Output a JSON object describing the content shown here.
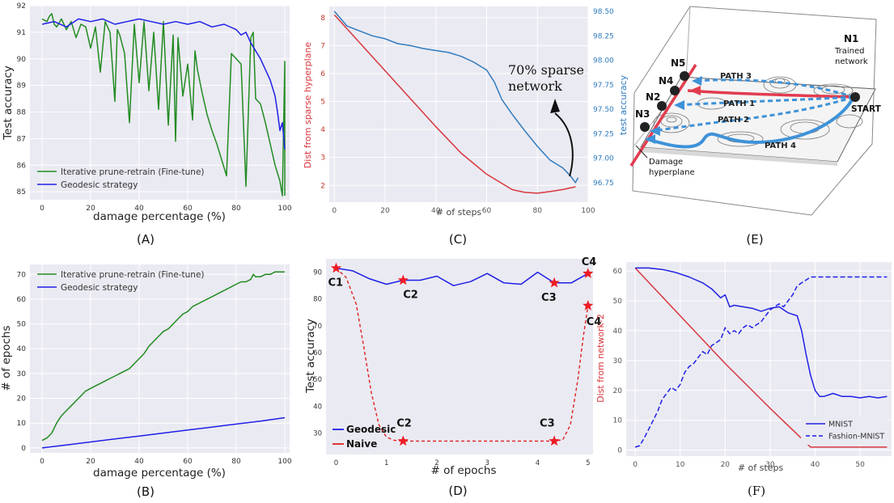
{
  "panel_labels": {
    "A": "(A)",
    "B": "(B)",
    "C": "(C)",
    "D": "(D)",
    "E": "(E)",
    "F": "(F)"
  },
  "chart_data": [
    {
      "id": "A",
      "type": "line",
      "xlabel": "damage percentage (%)",
      "ylabel": "Test accuracy",
      "xlim": [
        -5,
        102
      ],
      "ylim": [
        84.7,
        92
      ],
      "xticks": [
        0,
        20,
        40,
        60,
        80,
        100
      ],
      "yticks": [
        85,
        86,
        87,
        88,
        89,
        90,
        91,
        92
      ],
      "legend": [
        {
          "name": "Iterative prune-retrain (Fine-tune)",
          "color": "#228b22"
        },
        {
          "name": "Geodesic strategy",
          "color": "#1f1fe6"
        }
      ],
      "series": [
        {
          "name": "Iterative prune-retrain (Fine-tune)",
          "color": "#228b22",
          "x": [
            0,
            2,
            3,
            4,
            5,
            6,
            8,
            10,
            12,
            14,
            16,
            18,
            20,
            22,
            24,
            26,
            28,
            30,
            31,
            32,
            34,
            36,
            38,
            40,
            42,
            44,
            46,
            48,
            50,
            52,
            54,
            55,
            56,
            58,
            60,
            62,
            63,
            64,
            66,
            68,
            70,
            72,
            74,
            76,
            78,
            80,
            82,
            84,
            86,
            87,
            88,
            90,
            92,
            94,
            96,
            98,
            99,
            100,
            100
          ],
          "y": [
            91.5,
            91.4,
            91.6,
            91.7,
            91.3,
            91.2,
            91.5,
            91.1,
            91.4,
            90.8,
            91.3,
            91.2,
            90.4,
            91.2,
            89.5,
            91.4,
            91.0,
            88.4,
            91.1,
            90.9,
            90.2,
            87.6,
            91.3,
            89.1,
            91.4,
            88.8,
            91.0,
            88.1,
            91.4,
            87.5,
            90.9,
            86.9,
            90.8,
            88.6,
            89.8,
            87.7,
            90.3,
            89.6,
            88.7,
            87.9,
            87.3,
            86.8,
            86.2,
            85.6,
            90.2,
            90.0,
            89.8,
            85.2,
            90.8,
            91.0,
            88.5,
            88.3,
            87.6,
            86.8,
            86.0,
            85.4,
            84.85,
            89.9,
            84.85
          ]
        },
        {
          "name": "Geodesic strategy",
          "color": "#1f1fe6",
          "x": [
            0,
            5,
            10,
            15,
            20,
            25,
            30,
            35,
            40,
            45,
            50,
            55,
            60,
            65,
            70,
            75,
            80,
            82,
            84,
            86,
            88,
            90,
            92,
            94,
            96,
            97,
            98,
            99,
            100
          ],
          "y": [
            91.3,
            91.4,
            91.2,
            91.5,
            91.4,
            91.5,
            91.3,
            91.4,
            91.5,
            91.4,
            91.3,
            91.4,
            91.3,
            91.4,
            91.2,
            91.3,
            91.1,
            90.9,
            91.0,
            90.6,
            90.3,
            90.0,
            89.6,
            89.2,
            88.6,
            88.0,
            87.3,
            87.6,
            86.6
          ]
        }
      ]
    },
    {
      "id": "B",
      "type": "line",
      "xlabel": "damage percentage (%)",
      "ylabel": "# of epochs",
      "xlim": [
        -5,
        102
      ],
      "ylim": [
        -2,
        74
      ],
      "xticks": [
        0,
        20,
        40,
        60,
        80,
        100
      ],
      "yticks": [
        0,
        10,
        20,
        30,
        40,
        50,
        60,
        70
      ],
      "legend": [
        {
          "name": "Iterative prune-retrain (Fine-tune)",
          "color": "#228b22"
        },
        {
          "name": "Geodesic strategy",
          "color": "#1f1fe6"
        }
      ],
      "series": [
        {
          "name": "Iterative prune-retrain (Fine-tune)",
          "color": "#228b22",
          "x": [
            0,
            2,
            4,
            6,
            8,
            10,
            12,
            14,
            16,
            18,
            20,
            22,
            24,
            26,
            28,
            30,
            32,
            34,
            36,
            38,
            40,
            42,
            44,
            46,
            48,
            50,
            52,
            54,
            56,
            58,
            60,
            62,
            64,
            66,
            68,
            70,
            72,
            74,
            76,
            78,
            80,
            82,
            84,
            86,
            87,
            88,
            90,
            92,
            94,
            96,
            98,
            100
          ],
          "y": [
            3,
            4,
            6,
            10,
            13,
            15,
            17,
            19,
            21,
            23,
            24,
            25,
            26,
            27,
            28,
            29,
            30,
            31,
            32,
            34,
            36,
            38,
            41,
            43,
            45,
            47,
            48,
            50,
            52,
            54,
            55,
            57,
            58,
            59,
            60,
            61,
            62,
            63,
            64,
            65,
            66,
            67,
            67,
            68,
            70,
            69,
            69,
            70,
            70,
            71,
            71,
            71
          ]
        },
        {
          "name": "Geodesic strategy",
          "color": "#1f1fe6",
          "x": [
            0,
            10,
            20,
            30,
            40,
            50,
            60,
            70,
            80,
            90,
            100
          ],
          "y": [
            0,
            1.2,
            2.4,
            3.6,
            4.8,
            6.0,
            7.2,
            8.4,
            9.6,
            10.8,
            12.2
          ]
        }
      ]
    },
    {
      "id": "C",
      "type": "line",
      "xlabel": "# of steps",
      "ylabel": "Dist from sparse hyperplane",
      "ylabel_right": "test accuracy",
      "xlim": [
        -2,
        100
      ],
      "ylim": [
        1.4,
        8.4
      ],
      "ylim_right": [
        96.55,
        98.55
      ],
      "xticks": [
        0,
        20,
        40,
        60,
        80,
        100
      ],
      "yticks": [
        2,
        3,
        4,
        5,
        6,
        7,
        8
      ],
      "yticks_right": [
        96.75,
        97.0,
        97.25,
        97.5,
        97.75,
        98.0,
        98.25,
        98.5
      ],
      "annotation": [
        "70% sparse",
        "network"
      ],
      "series": [
        {
          "name": "Dist from sparse hyperplane",
          "color": "#d9363e",
          "axis": "left",
          "x": [
            0,
            10,
            20,
            30,
            40,
            50,
            60,
            70,
            75,
            80,
            85,
            90,
            95
          ],
          "y": [
            8.1,
            7.1,
            6.1,
            5.1,
            4.1,
            3.15,
            2.4,
            1.85,
            1.75,
            1.72,
            1.78,
            1.85,
            1.95
          ]
        },
        {
          "name": "test accuracy",
          "color": "#2f7bbd",
          "axis": "right",
          "x": [
            0,
            5,
            10,
            15,
            20,
            25,
            30,
            35,
            40,
            45,
            50,
            55,
            60,
            63,
            66,
            70,
            75,
            80,
            85,
            90,
            93,
            95,
            96
          ],
          "y": [
            98.5,
            98.35,
            98.3,
            98.25,
            98.22,
            98.17,
            98.15,
            98.12,
            98.1,
            98.08,
            98.04,
            97.98,
            97.9,
            97.78,
            97.6,
            97.45,
            97.28,
            97.12,
            96.98,
            96.9,
            96.82,
            96.75,
            96.8
          ]
        }
      ]
    },
    {
      "id": "D",
      "type": "line",
      "xlabel": "# of epochs",
      "ylabel": "Test accuracy",
      "xlim": [
        -0.2,
        5.1
      ],
      "ylim": [
        22,
        95
      ],
      "xticks": [
        0,
        1,
        2,
        3,
        4,
        5
      ],
      "yticks": [
        30,
        40,
        50,
        60,
        70,
        80,
        90
      ],
      "legend": [
        {
          "name": "Geodesic",
          "color": "#1f1fe6"
        },
        {
          "name": "Naive",
          "color": "#e02020"
        }
      ],
      "points": [
        {
          "label": "C1",
          "x": 0,
          "y": 91.5
        },
        {
          "label": "C2",
          "x": 1.33,
          "y": 87
        },
        {
          "label": "C3",
          "x": 4.33,
          "y": 86
        },
        {
          "label": "C4",
          "x": 5,
          "y": 89.5
        },
        {
          "label": "C2",
          "x": 1.33,
          "y": 27
        },
        {
          "label": "C3",
          "x": 4.33,
          "y": 27
        },
        {
          "label": "C4",
          "x": 5,
          "y": 77.5
        }
      ],
      "series": [
        {
          "name": "Geodesic",
          "color": "#1f1fe6",
          "x": [
            0,
            0.33,
            0.67,
            1.0,
            1.33,
            1.67,
            2.0,
            2.33,
            2.67,
            3.0,
            3.33,
            3.67,
            4.0,
            4.33,
            4.67,
            5.0
          ],
          "y": [
            91.5,
            90.5,
            87.5,
            85.5,
            87,
            87,
            88.5,
            85,
            86.5,
            89.5,
            86,
            85.5,
            90,
            86,
            86,
            89.5
          ]
        },
        {
          "name": "Naive",
          "color": "#e02020",
          "x": [
            0,
            0.2,
            0.4,
            0.55,
            0.7,
            0.85,
            1.0,
            1.15,
            1.33,
            2,
            3,
            4,
            4.33,
            4.5,
            4.65,
            4.8,
            4.9,
            5.0
          ],
          "y": [
            91.5,
            88,
            78,
            62,
            45,
            33,
            28.5,
            27.3,
            27,
            27,
            27,
            27,
            27,
            27.5,
            33,
            50,
            65,
            77.5
          ]
        }
      ]
    },
    {
      "id": "F",
      "type": "line",
      "xlabel": "# of steps",
      "ylabel": "Dist from network-2",
      "xlim": [
        -2,
        57
      ],
      "ylim": [
        -2,
        63
      ],
      "xticks": [
        0,
        10,
        20,
        30,
        40,
        50
      ],
      "yticks": [
        0,
        10,
        20,
        30,
        40,
        50,
        60
      ],
      "legend": [
        {
          "name": "MNIST",
          "color": "#1f1fe6"
        },
        {
          "name": "Fashion-MNIST",
          "color": "#1f1fe6"
        }
      ],
      "series": [
        {
          "name": "Dist (red)",
          "color": "#d9363e",
          "x": [
            0,
            10,
            20,
            30,
            39,
            40,
            56
          ],
          "y": [
            61,
            45,
            29,
            14,
            1,
            1,
            1
          ]
        },
        {
          "name": "MNIST",
          "color": "#1f1fe6",
          "x": [
            0,
            3,
            6,
            9,
            12,
            15,
            17,
            19,
            20,
            21,
            22,
            24,
            26,
            28,
            30,
            32,
            34,
            36,
            37,
            38,
            39,
            40,
            41,
            42,
            44,
            46,
            48,
            50,
            52,
            54,
            56
          ],
          "y": [
            61,
            61,
            60.5,
            59.5,
            58,
            56,
            54,
            51,
            52,
            48,
            48.5,
            48,
            47.5,
            46.5,
            47.5,
            48,
            46,
            45,
            40,
            32,
            25,
            20,
            18,
            18,
            19,
            18,
            18,
            17.5,
            18,
            17.5,
            18
          ]
        },
        {
          "name": "Fashion-MNIST",
          "color": "#1f1fe6",
          "dash": true,
          "x": [
            0,
            1,
            2,
            3,
            4,
            5,
            6,
            7,
            8,
            9,
            10,
            11,
            12,
            13,
            14,
            15,
            16,
            17,
            18,
            19,
            20,
            21,
            22,
            23,
            24,
            25,
            26,
            27,
            28,
            29,
            30,
            31,
            32,
            33,
            34,
            35,
            36,
            37,
            38,
            39,
            40,
            56
          ],
          "y": [
            1,
            1.5,
            4,
            7,
            10,
            13,
            17,
            19,
            21,
            20,
            22,
            26,
            28,
            29,
            31,
            33,
            32,
            35,
            36,
            37,
            41,
            39,
            40,
            39,
            41,
            42,
            41,
            42,
            43,
            45,
            47,
            48,
            49,
            48,
            50,
            52,
            55,
            56,
            57,
            58,
            58,
            58
          ]
        }
      ]
    }
  ],
  "diagram_E": {
    "nodes": [
      "N1",
      "N2",
      "N3",
      "N4",
      "N5"
    ],
    "node_labels": {
      "N1": "N1",
      "N2": "N2",
      "N3": "N3",
      "N4": "N4",
      "N5": "N5"
    },
    "trained_network": [
      "Trained",
      "network"
    ],
    "start": "START",
    "paths": {
      "p1": "PATH 1",
      "p2": "PATH 2",
      "p3": "PATH 3",
      "p4": "PATH 4"
    },
    "damage_hyperplane": [
      "Damage",
      "hyperplane"
    ],
    "colors": {
      "red": "#e23c4f",
      "blue": "#3e92d8"
    }
  }
}
